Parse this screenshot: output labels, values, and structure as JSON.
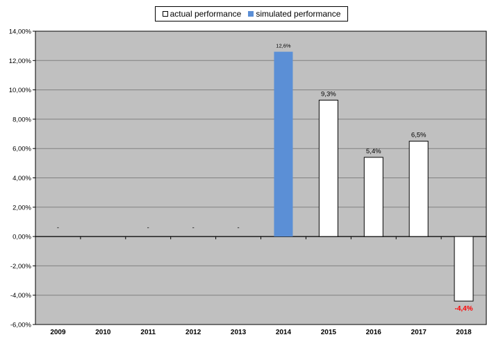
{
  "chart_data": {
    "type": "bar",
    "categories": [
      "2009",
      "2010",
      "2011",
      "2012",
      "2013",
      "2014",
      "2015",
      "2016",
      "2017",
      "2018"
    ],
    "series": [
      {
        "name": "actual performance",
        "values": [
          null,
          null,
          null,
          null,
          null,
          null,
          9.3,
          5.4,
          6.5,
          -4.4
        ],
        "color": "#ffffff"
      },
      {
        "name": "simulated performance",
        "values": [
          null,
          null,
          null,
          null,
          null,
          12.6,
          null,
          null,
          null,
          null
        ],
        "color": "#5b8fd6"
      }
    ],
    "data_labels": [
      "-",
      "",
      "-",
      "-",
      "-",
      "12,6%",
      "9,3%",
      "5,4%",
      "6,5%",
      "-4,4%"
    ],
    "y_ticks": [
      "14,00%",
      "12,00%",
      "10,00%",
      "8,00%",
      "6,00%",
      "4,00%",
      "2,00%",
      "0,00%",
      "-2,00%",
      "-4,00%",
      "-6,00%"
    ],
    "ylim": [
      -6,
      14
    ],
    "negative_label_color": "#ff0000",
    "plot_background": "#c0c0c0",
    "grid": true,
    "legend_position": "top-center",
    "title": "",
    "xlabel": "",
    "ylabel": ""
  }
}
